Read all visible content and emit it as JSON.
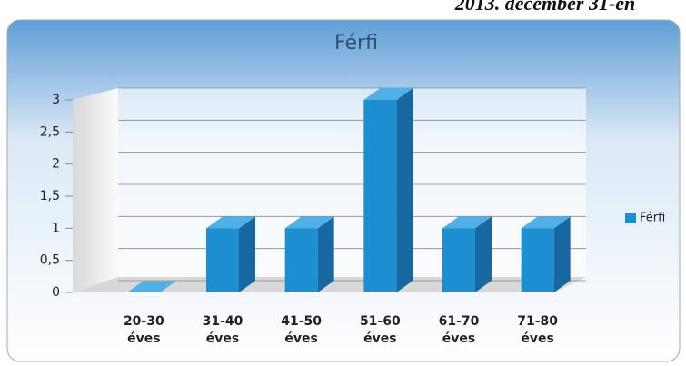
{
  "header": {
    "title": "2013. december 31-én"
  },
  "chart_data": {
    "type": "bar",
    "title": "Férfi",
    "categories": [
      "20-30 éves",
      "31-40 éves",
      "41-50 éves",
      "51-60 éves",
      "61-70 éves",
      "71-80 éves"
    ],
    "series": [
      {
        "name": "Férfi",
        "color": "#1b8fd0",
        "values": [
          0,
          1,
          1,
          3,
          1,
          1
        ]
      }
    ],
    "ylim": [
      0,
      3
    ],
    "yticks": [
      0,
      {
        "value": 0.5,
        "label": "0,5"
      },
      1,
      {
        "value": 1.5,
        "label": "1,5"
      },
      2,
      {
        "value": 2.5,
        "label": "2,5"
      },
      3
    ],
    "grid": true,
    "legend": "right"
  }
}
